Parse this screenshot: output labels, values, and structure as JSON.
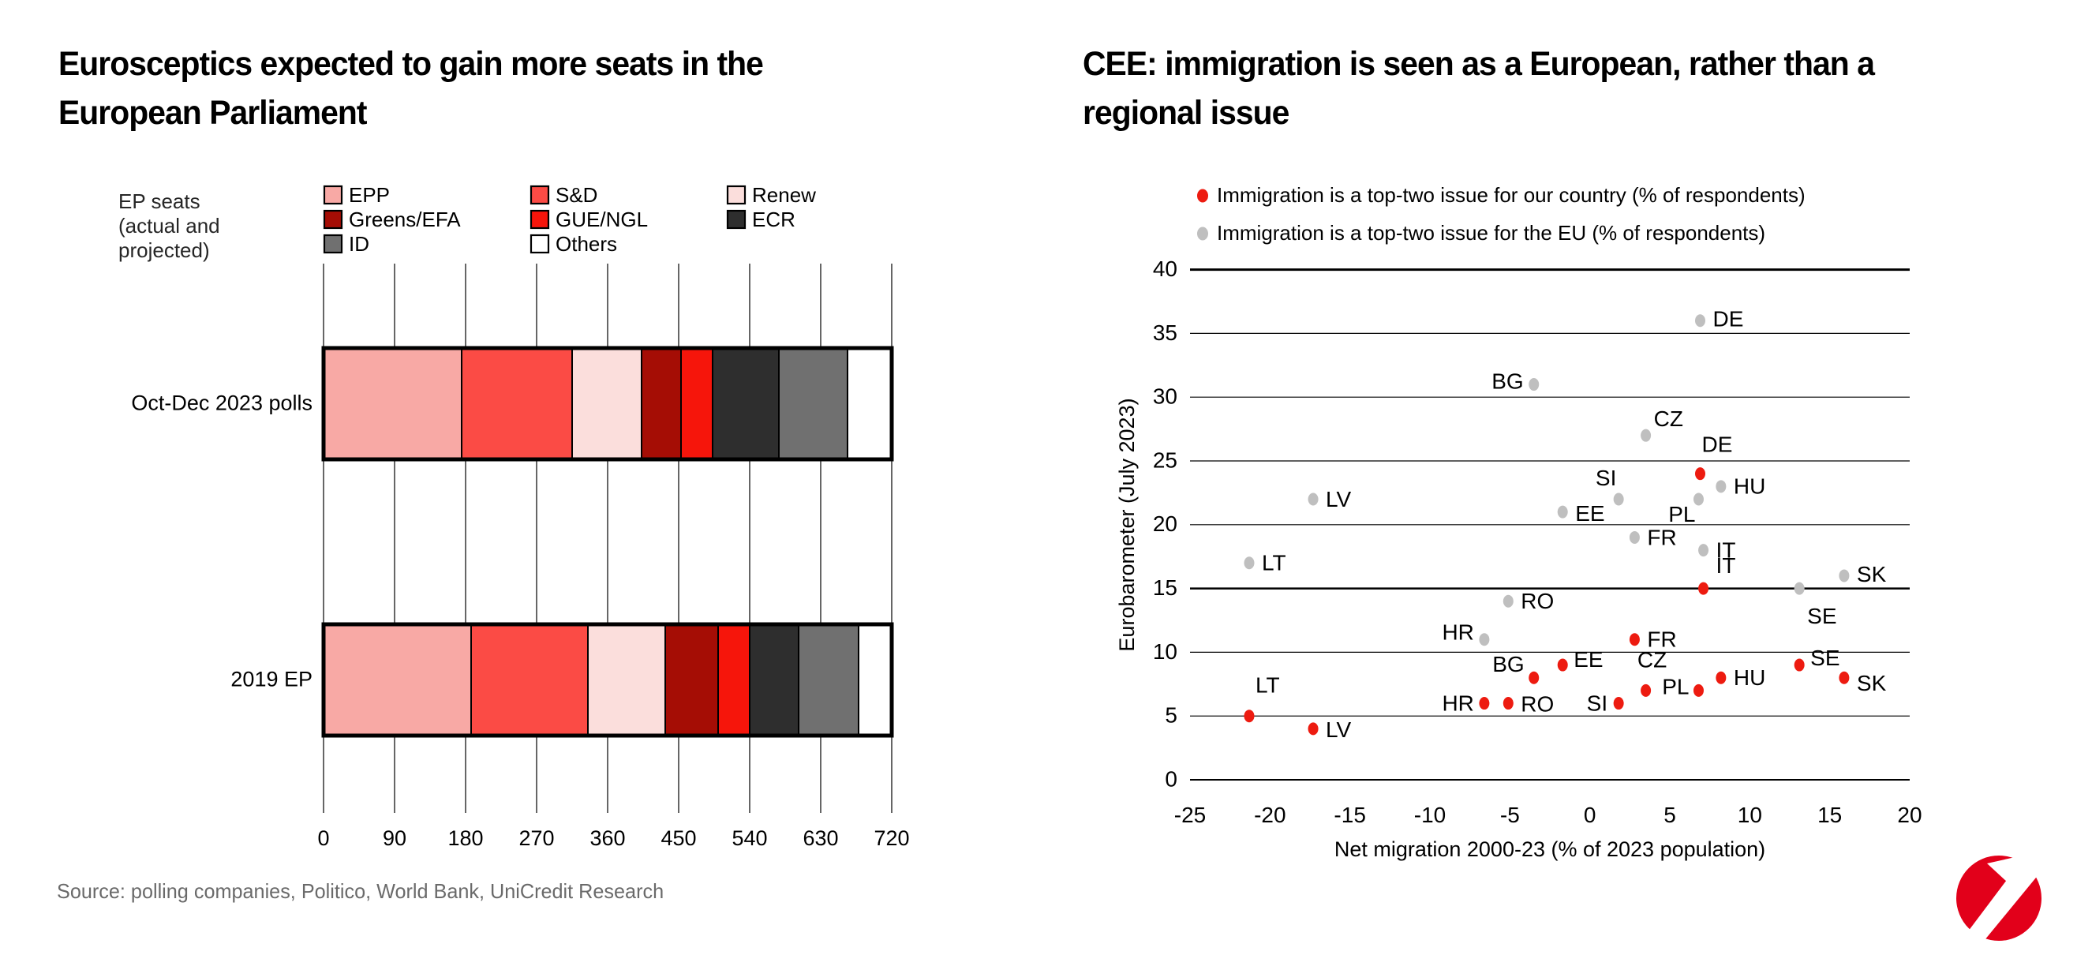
{
  "page": {
    "left_title_line1": "Eurosceptics expected to gain more seats in the",
    "left_title_line2": "European Parliament",
    "right_title_line1": "CEE: immigration is seen as a European, rather than a",
    "right_title_line2": "regional issue",
    "source": "Source: polling companies, Politico, World Bank, UniCredit Research",
    "logo": {
      "name": "unicredit-logo",
      "color": "#E2001A"
    }
  },
  "chart_data": [
    {
      "type": "bar",
      "orientation": "horizontal-stacked",
      "title": "Eurosceptics expected to gain more seats in the European Parliament",
      "axis_note": "EP seats\n(actual and\nprojected)",
      "categories": [
        "Oct-Dec 2023 polls",
        "2019 EP"
      ],
      "series": [
        {
          "name": "EPP",
          "color": "#F8A9A5",
          "values": [
            175,
            187
          ]
        },
        {
          "name": "S&D",
          "color": "#FB4B45",
          "values": [
            140,
            148
          ]
        },
        {
          "name": "Renew",
          "color": "#FBDEDC",
          "values": [
            88,
            98
          ]
        },
        {
          "name": "Greens/EFA",
          "color": "#A50D05",
          "values": [
            50,
            67
          ]
        },
        {
          "name": "GUE/NGL",
          "color": "#F6150B",
          "values": [
            40,
            40
          ]
        },
        {
          "name": "ECR",
          "color": "#2E2E2E",
          "values": [
            84,
            62
          ]
        },
        {
          "name": "ID",
          "color": "#707070",
          "values": [
            87,
            76
          ]
        },
        {
          "name": "Others",
          "color": "#FFFFFF",
          "values": [
            56,
            42
          ]
        }
      ],
      "legend_columns": [
        [
          0,
          3,
          6
        ],
        [
          1,
          4,
          7
        ],
        [
          2,
          5
        ]
      ],
      "x_ticks": [
        0,
        90,
        180,
        270,
        360,
        450,
        540,
        630,
        720
      ],
      "xlim": [
        0,
        720
      ],
      "grid": true
    },
    {
      "type": "scatter",
      "title": "CEE: immigration is seen as a European, rather than a regional issue",
      "xlabel": "Net migration 2000-23 (% of 2023 population)",
      "ylabel": "Eurobarometer (July 2023)",
      "xlim": [
        -25,
        20
      ],
      "ylim": [
        0,
        40
      ],
      "x_ticks": [
        -25,
        -20,
        -15,
        -10,
        -5,
        0,
        5,
        10,
        15,
        20
      ],
      "y_ticks": [
        0,
        5,
        10,
        15,
        20,
        25,
        30,
        35,
        40
      ],
      "gridline_weights": {
        "0": 2,
        "15": 2.5,
        "40": 3
      },
      "legend_position": "top",
      "series": [
        {
          "name": "Immigration is a top-two issue for our country (% of respondents)",
          "color": "#ED1B10",
          "points": [
            {
              "country": "LT",
              "x": -21.3,
              "y": 5,
              "dx": 8,
              "dy": -38,
              "anchor": "start"
            },
            {
              "country": "LV",
              "x": -17.3,
              "y": 4,
              "dx": 16,
              "dy": 2,
              "anchor": "start"
            },
            {
              "country": "HR",
              "x": -6.6,
              "y": 6,
              "dx": -13,
              "dy": 1,
              "anchor": "end"
            },
            {
              "country": "RO",
              "x": -5.1,
              "y": 6,
              "dx": 16,
              "dy": 2,
              "anchor": "start"
            },
            {
              "country": "BG",
              "x": -3.5,
              "y": 8,
              "dx": -12,
              "dy": -16,
              "anchor": "end"
            },
            {
              "country": "EE",
              "x": -1.7,
              "y": 9,
              "dx": 14,
              "dy": -6,
              "anchor": "start"
            },
            {
              "country": "SI",
              "x": 1.8,
              "y": 6,
              "dx": -14,
              "dy": 1,
              "anchor": "end"
            },
            {
              "country": "FR",
              "x": 2.8,
              "y": 11,
              "dx": 16,
              "dy": 1,
              "anchor": "start"
            },
            {
              "country": "CZ",
              "x": 3.5,
              "y": 7,
              "dx": 8,
              "dy": -38,
              "anchor": "middle"
            },
            {
              "country": "PL",
              "x": 6.8,
              "y": 7,
              "dx": -12,
              "dy": -4,
              "anchor": "end"
            },
            {
              "country": "DE",
              "x": 6.9,
              "y": 24,
              "dx": 2,
              "dy": -36,
              "anchor": "start"
            },
            {
              "country": "IT",
              "x": 7.1,
              "y": 15,
              "dx": 16,
              "dy": -28,
              "anchor": "start"
            },
            {
              "country": "HU",
              "x": 8.2,
              "y": 8,
              "dx": 16,
              "dy": 1,
              "anchor": "start"
            },
            {
              "country": "SE",
              "x": 13.1,
              "y": 9,
              "dx": 14,
              "dy": -8,
              "anchor": "start"
            },
            {
              "country": "SK",
              "x": 15.9,
              "y": 8,
              "dx": 16,
              "dy": 8,
              "anchor": "start"
            }
          ]
        },
        {
          "name": "Immigration is a top-two issue for the EU (% of respondents)",
          "color": "#BFBFBF",
          "points": [
            {
              "country": "LT",
              "x": -21.3,
              "y": 17,
              "dx": 16,
              "dy": 1,
              "anchor": "start"
            },
            {
              "country": "LV",
              "x": -17.3,
              "y": 22,
              "dx": 16,
              "dy": 1,
              "anchor": "start"
            },
            {
              "country": "HR",
              "x": -6.6,
              "y": 11,
              "dx": -13,
              "dy": -8,
              "anchor": "end"
            },
            {
              "country": "RO",
              "x": -5.1,
              "y": 14,
              "dx": 16,
              "dy": 1,
              "anchor": "start"
            },
            {
              "country": "BG",
              "x": -3.5,
              "y": 31,
              "dx": -13,
              "dy": -3,
              "anchor": "end"
            },
            {
              "country": "EE",
              "x": -1.7,
              "y": 21,
              "dx": 16,
              "dy": 3,
              "anchor": "start"
            },
            {
              "country": "SI",
              "x": 1.8,
              "y": 22,
              "dx": -16,
              "dy": -26,
              "anchor": "middle"
            },
            {
              "country": "FR",
              "x": 2.8,
              "y": 19,
              "dx": 16,
              "dy": 1,
              "anchor": "start"
            },
            {
              "country": "CZ",
              "x": 3.5,
              "y": 27,
              "dx": 10,
              "dy": -20,
              "anchor": "start"
            },
            {
              "country": "PL",
              "x": 6.8,
              "y": 22,
              "dx": -4,
              "dy": 20,
              "anchor": "end"
            },
            {
              "country": "DE",
              "x": 6.9,
              "y": 36,
              "dx": 16,
              "dy": -1,
              "anchor": "start"
            },
            {
              "country": "IT",
              "x": 7.1,
              "y": 18,
              "dx": 16,
              "dy": 1,
              "anchor": "start"
            },
            {
              "country": "HU",
              "x": 8.2,
              "y": 23,
              "dx": 16,
              "dy": 1,
              "anchor": "start"
            },
            {
              "country": "SE",
              "x": 13.1,
              "y": 15,
              "dx": 10,
              "dy": 36,
              "anchor": "start"
            },
            {
              "country": "SK",
              "x": 15.9,
              "y": 16,
              "dx": 16,
              "dy": -1,
              "anchor": "start"
            }
          ]
        }
      ]
    }
  ]
}
